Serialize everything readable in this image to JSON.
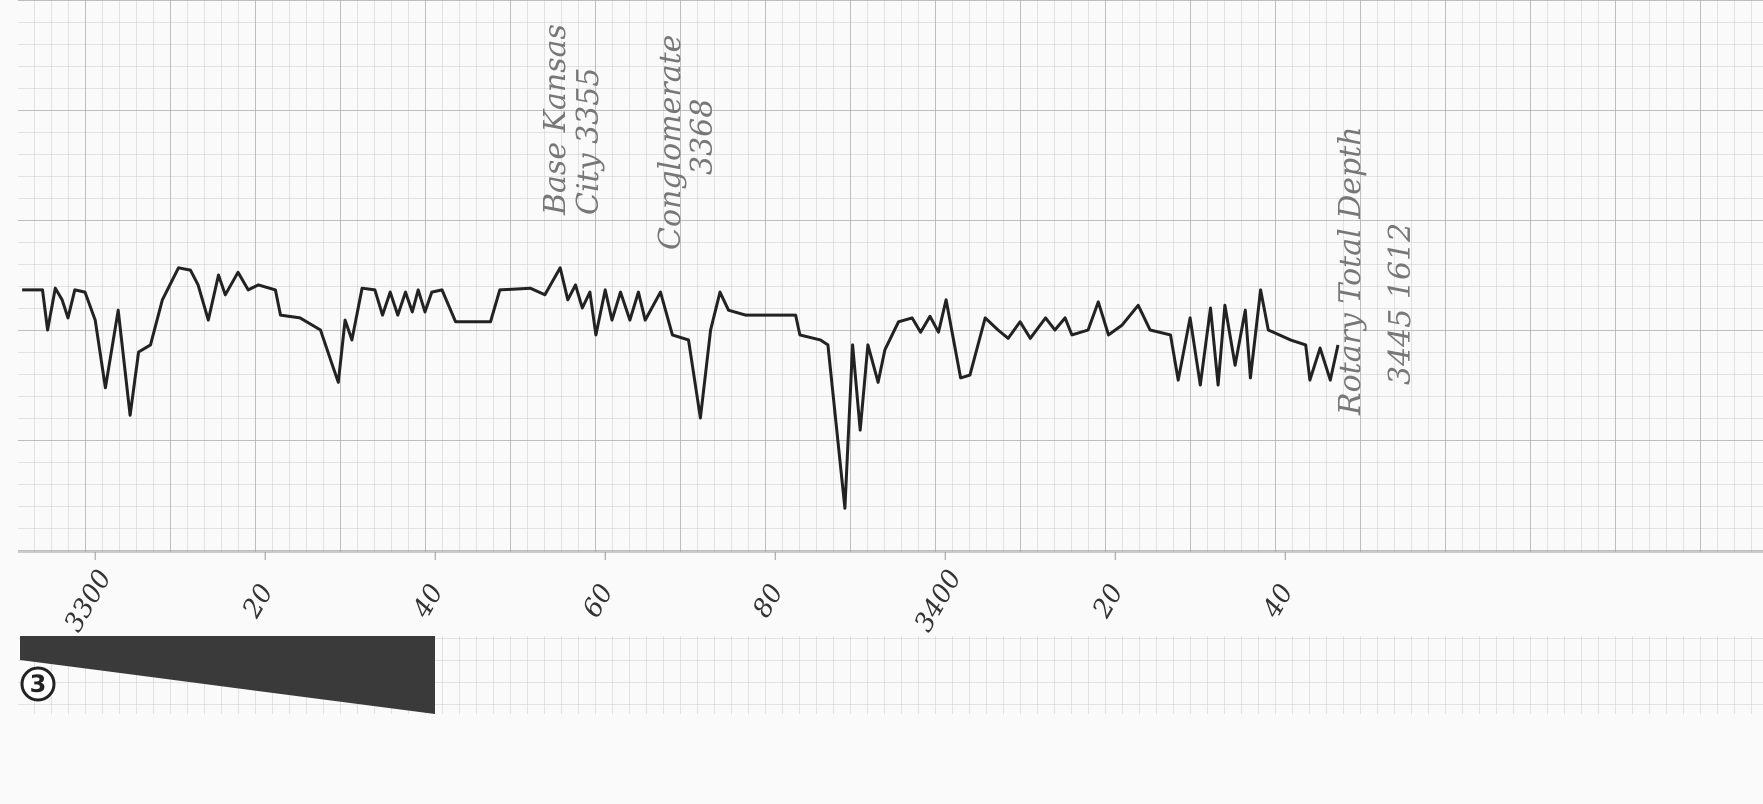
{
  "chart_data": {
    "type": "line",
    "track_number": "3",
    "annotations": [
      "Base Kansas",
      "City 3355",
      "Conglomerate",
      "3368",
      "Rotary Total Depth",
      "3445   1612"
    ],
    "x": [
      3291.4,
      3293.8,
      3294.4,
      3295.3,
      3296.1,
      3296.8,
      3297.6,
      3298.8,
      3300.0,
      3301.2,
      3302.7,
      3304.1,
      3305.1,
      3306.5,
      3307.9,
      3309.8,
      3311.2,
      3312.1,
      3313.3,
      3314.5,
      3315.3,
      3316.8,
      3318.0,
      3319.2,
      3321.2,
      3321.8,
      3324.1,
      3326.5,
      3327.9,
      3328.6,
      3329.4,
      3330.2,
      3331.4,
      3332.9,
      3333.8,
      3334.7,
      3335.6,
      3336.5,
      3337.3,
      3338.0,
      3338.8,
      3339.6,
      3340.8,
      3342.4,
      3346.5,
      3347.6,
      3351.2,
      3352.9,
      3354.7,
      3355.6,
      3356.5,
      3357.3,
      3358.2,
      3358.9,
      3360.0,
      3360.8,
      3361.8,
      3362.9,
      3363.9,
      3364.7,
      3366.5,
      3367.9,
      3369.8,
      3371.2,
      3372.4,
      3373.5,
      3374.5,
      3376.5,
      3382.4,
      3382.9,
      3385.3,
      3386.2,
      3388.2,
      3389.1,
      3390.0,
      3390.9,
      3392.1,
      3392.9,
      3394.5,
      3396.1,
      3397.1,
      3398.2,
      3399.2,
      3400.1,
      3401.8,
      3402.9,
      3404.7,
      3406.2,
      3407.4,
      3408.8,
      3410.0,
      3411.8,
      3412.9,
      3414.1,
      3414.9,
      3416.8,
      3418.0,
      3419.2,
      3420.8,
      3422.7,
      3424.1,
      3426.5,
      3427.4,
      3428.8,
      3430.0,
      3431.2,
      3432.1,
      3432.9,
      3434.1,
      3435.3,
      3435.9,
      3437.1,
      3438.0,
      3440.6,
      3442.4,
      3442.9,
      3444.1,
      3445.3,
      3446.2
    ],
    "values": [
      47.3,
      47.3,
      40.0,
      47.6,
      45.5,
      42.2,
      47.3,
      46.9,
      41.8,
      29.5,
      43.6,
      24.5,
      36.0,
      37.3,
      45.5,
      51.3,
      50.9,
      48.2,
      41.8,
      50.0,
      46.4,
      50.5,
      47.3,
      48.2,
      47.3,
      42.7,
      42.2,
      40.0,
      33.6,
      30.5,
      41.8,
      38.2,
      47.6,
      47.3,
      42.7,
      46.9,
      42.7,
      46.9,
      43.3,
      47.3,
      43.3,
      46.9,
      47.3,
      41.5,
      41.5,
      47.3,
      47.6,
      46.4,
      51.3,
      45.5,
      48.2,
      44.0,
      46.9,
      39.1,
      47.3,
      41.8,
      46.9,
      41.8,
      46.9,
      41.8,
      46.9,
      39.1,
      38.2,
      24.0,
      40.0,
      46.9,
      43.6,
      42.7,
      42.7,
      39.1,
      38.2,
      37.3,
      7.6,
      37.3,
      21.8,
      37.3,
      30.5,
      36.4,
      41.5,
      42.2,
      39.6,
      42.5,
      39.6,
      45.5,
      31.3,
      31.8,
      42.2,
      40.0,
      38.5,
      41.5,
      38.5,
      42.2,
      40.0,
      42.2,
      39.1,
      40.0,
      45.1,
      39.1,
      40.9,
      44.5,
      40.0,
      39.1,
      30.9,
      42.2,
      30.0,
      44.0,
      30.0,
      44.5,
      33.6,
      43.6,
      31.3,
      47.3,
      40.0,
      38.2,
      37.3,
      30.9,
      36.7,
      30.9,
      37.3
    ],
    "color": "#222222",
    "xlim": [
      3288.8,
      3496.2
    ],
    "ylim": [
      0,
      100
    ],
    "xticks": [
      3300,
      {
        "value": 3320,
        "label": "20"
      },
      {
        "value": 3340,
        "label": "40"
      },
      {
        "value": 3360,
        "label": "60"
      },
      {
        "value": 3380,
        "label": "80"
      },
      3400,
      {
        "value": 3420,
        "label": "20"
      },
      {
        "value": 3440,
        "label": "40"
      }
    ]
  }
}
